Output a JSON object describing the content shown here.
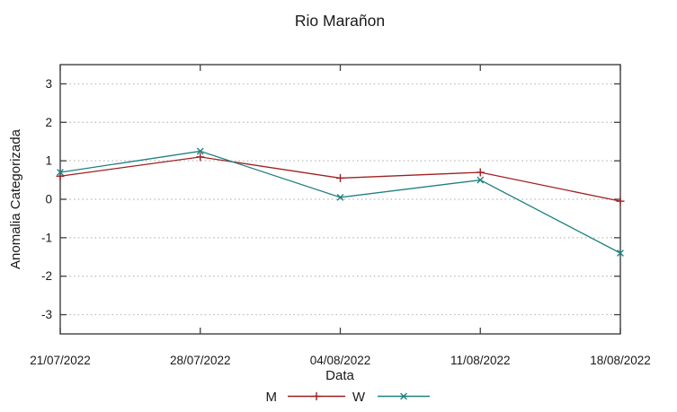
{
  "chart_data": {
    "type": "line",
    "title": "Rio Marañon",
    "xlabel": "Data",
    "ylabel": "Anomalia Categorizada",
    "categories": [
      "21/07/2022",
      "28/07/2022",
      "04/08/2022",
      "11/08/2022",
      "18/08/2022"
    ],
    "series": [
      {
        "name": "M",
        "color": "#a02020",
        "marker": "plus",
        "values": [
          0.6,
          1.1,
          0.55,
          0.7,
          -0.05
        ]
      },
      {
        "name": "W",
        "color": "#1f8080",
        "marker": "cross",
        "values": [
          0.7,
          1.25,
          0.05,
          0.5,
          -1.4
        ]
      }
    ],
    "ylim": [
      -3.5,
      3.5
    ],
    "yticks": [
      3,
      2,
      1,
      0,
      -1,
      -2,
      -3
    ],
    "ytick_labels": [
      "3",
      "2",
      "1",
      "0",
      "-1",
      "-2",
      "-3"
    ],
    "grid": "horizontal-dotted",
    "legend_position": "bottom-center",
    "colors": {
      "background": "#ffffff",
      "border": "#404040",
      "grid": "#b8b8b8",
      "text": "#1a1a1a"
    }
  }
}
